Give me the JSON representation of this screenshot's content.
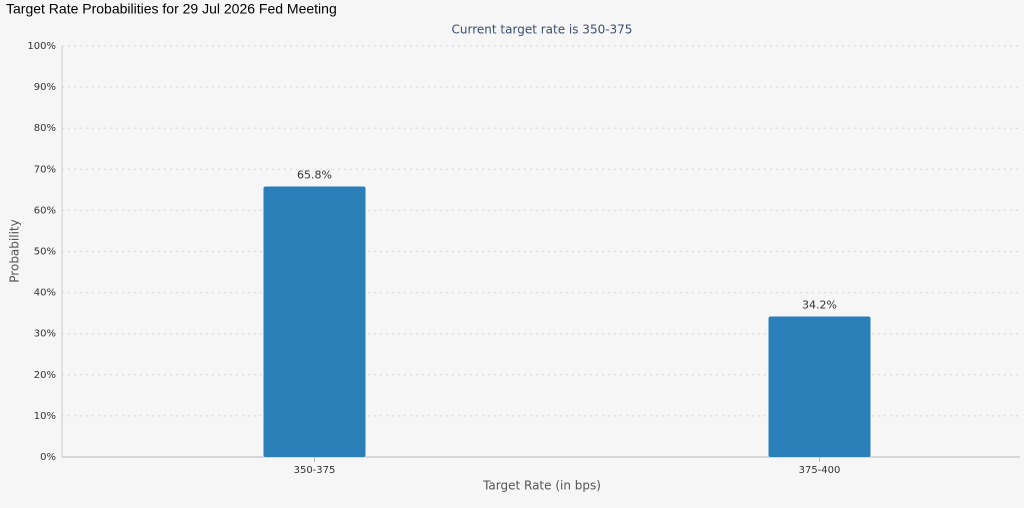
{
  "chart_data": {
    "type": "bar",
    "title": "Target Rate Probabilities for 29 Jul 2026 Fed Meeting",
    "subtitle": "Current target rate is 350-375",
    "x_label": "Target Rate (in bps)",
    "y_label": "Probability",
    "categories": [
      "350-375",
      "375-400"
    ],
    "values": [
      65.8,
      34.2
    ],
    "value_labels": [
      "65.8%",
      "34.2%"
    ],
    "color": "#2a7fb8",
    "ylim": [
      0,
      100
    ],
    "yticks": [
      {
        "value": 0,
        "label": "0%"
      },
      {
        "value": 10,
        "label": "10%"
      },
      {
        "value": 20,
        "label": "20%"
      },
      {
        "value": 30,
        "label": "30%"
      },
      {
        "value": 40,
        "label": "40%"
      },
      {
        "value": 50,
        "label": "50%"
      },
      {
        "value": 60,
        "label": "60%"
      },
      {
        "value": 70,
        "label": "70%"
      },
      {
        "value": 80,
        "label": "80%"
      },
      {
        "value": 90,
        "label": "90%"
      },
      {
        "value": 100,
        "label": "100%"
      }
    ],
    "grid": true
  }
}
